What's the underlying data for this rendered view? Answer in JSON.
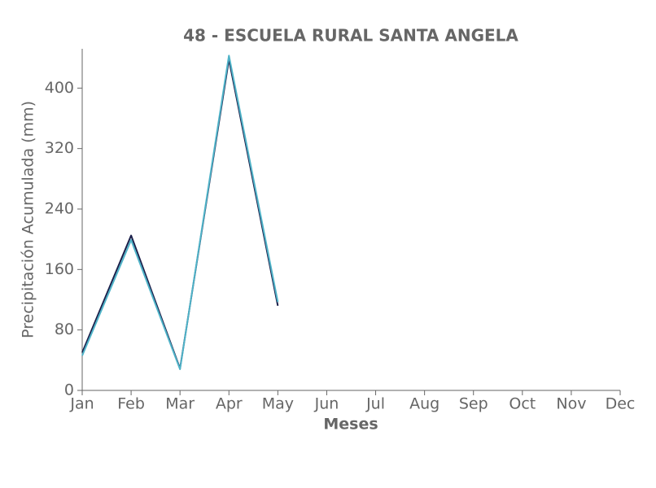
{
  "chart_data": {
    "type": "line",
    "title": "48 - ESCUELA RURAL SANTA ANGELA",
    "x_label": "Meses",
    "y_label": "Precipitación Acumulada (mm)",
    "categories": [
      "Jan",
      "Feb",
      "Mar",
      "Apr",
      "May",
      "Jun",
      "Jul",
      "Aug",
      "Sep",
      "Oct",
      "Nov",
      "Dec"
    ],
    "series": [
      {
        "color": "#1b1f4a",
        "values": [
          50,
          205,
          29,
          438,
          112,
          null,
          null,
          null,
          null,
          null,
          null,
          null
        ]
      },
      {
        "color": "#4fb3c8",
        "values": [
          46,
          199,
          28,
          443,
          117,
          null,
          null,
          null,
          null,
          null,
          null,
          null
        ]
      }
    ],
    "ylim": [
      0,
      452
    ],
    "yticks": [
      0,
      80,
      160,
      240,
      320,
      400
    ],
    "grid": false
  }
}
